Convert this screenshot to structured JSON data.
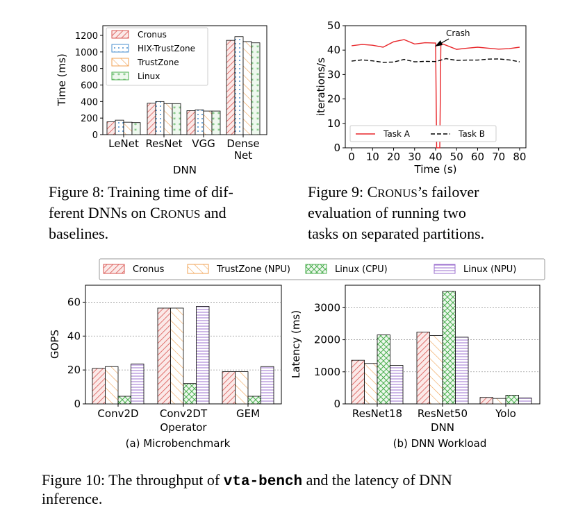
{
  "colors": {
    "cronus": "#d9534f",
    "hix": "#4a8fcf",
    "trustzone": "#f0a050",
    "linux": "#4caf50",
    "linux_npu": "#9b6fcf",
    "task_a": "#e8262a",
    "task_b": "#000000"
  },
  "figure8": {
    "caption_lines": [
      {
        "parts": [
          {
            "t": "Figure 8: Training time of dif-",
            "sc": false
          }
        ]
      },
      {
        "parts": [
          {
            "t": "ferent DNNs on ",
            "sc": false
          },
          {
            "t": "C",
            "sc": false
          },
          {
            "t": "RONUS",
            "sc": true
          },
          {
            "t": " and",
            "sc": false
          }
        ]
      },
      {
        "parts": [
          {
            "t": "baselines.",
            "sc": false
          }
        ]
      }
    ],
    "chart_data": {
      "type": "bar",
      "categories": [
        "LeNet",
        "ResNet",
        "VGG",
        "Dense\nNet"
      ],
      "series": [
        {
          "name": "Cronus",
          "values": [
            155,
            380,
            290,
            1140
          ]
        },
        {
          "name": "HIX-TrustZone",
          "values": [
            175,
            400,
            300,
            1185
          ]
        },
        {
          "name": "TrustZone",
          "values": [
            150,
            375,
            285,
            1125
          ]
        },
        {
          "name": "Linux",
          "values": [
            145,
            375,
            285,
            1110
          ]
        }
      ],
      "xlabel": "DNN",
      "ylabel": "Time (ms)",
      "ylim": [
        0,
        1200
      ],
      "yticks": [
        "0",
        "200",
        "400",
        "600",
        "800",
        "1000",
        "1200"
      ],
      "legend": "top-left",
      "grid": false
    }
  },
  "figure9": {
    "caption_lines": [
      {
        "parts": [
          {
            "t": "Figure 9: ",
            "sc": false
          },
          {
            "t": "C",
            "sc": false
          },
          {
            "t": "RONUS",
            "sc": true
          },
          {
            "t": "’s failover",
            "sc": false
          }
        ]
      },
      {
        "parts": [
          {
            "t": "evaluation   of   running   two",
            "sc": false
          }
        ]
      },
      {
        "parts": [
          {
            "t": "tasks on separated partitions.",
            "sc": false
          }
        ]
      }
    ],
    "chart_data": {
      "type": "line",
      "series": [
        {
          "name": "Task A",
          "x": [
            0,
            5,
            10,
            15,
            20,
            25,
            30,
            35,
            40,
            40.5,
            41,
            42,
            42.5,
            43,
            45,
            50,
            55,
            60,
            65,
            70,
            75,
            80
          ],
          "y": [
            41.8,
            42.3,
            42,
            41.2,
            43.4,
            44.3,
            42.5,
            43,
            42.9,
            0,
            0,
            0,
            42.5,
            42.6,
            42,
            40.3,
            40.8,
            41.2,
            40.8,
            40.4,
            40.6,
            41.2
          ]
        },
        {
          "name": "Task B",
          "x": [
            0,
            5,
            10,
            15,
            20,
            25,
            30,
            35,
            40,
            45,
            50,
            55,
            60,
            65,
            70,
            75,
            80
          ],
          "y": [
            35.5,
            36,
            35.6,
            35,
            35.1,
            36.2,
            35.2,
            35.4,
            35.3,
            36.5,
            35.8,
            35.9,
            35.9,
            36.3,
            36.4,
            36,
            35.2
          ]
        }
      ],
      "xlabel": "Time (s)",
      "ylabel": "iterations/s",
      "xlim": [
        -3,
        83
      ],
      "ylim": [
        0,
        50
      ],
      "xticks": [
        "0",
        "10",
        "20",
        "30",
        "40",
        "50",
        "60",
        "70",
        "80"
      ],
      "yticks": [
        "0",
        "10",
        "20",
        "30",
        "40",
        "50"
      ],
      "annotation": "Crash",
      "legend": "bottom",
      "grid": false
    }
  },
  "figure10": {
    "legend": [
      "Cronus",
      "TrustZone (NPU)",
      "Linux (CPU)",
      "Linux (NPU)"
    ],
    "caption_lines": [
      {
        "parts": [
          {
            "t": "Figure 10: The throughput of ",
            "mono": false
          },
          {
            "t": "vta-bench",
            "mono": true
          },
          {
            "t": " and the latency of DNN",
            "mono": false
          }
        ]
      },
      {
        "parts": [
          {
            "t": "inference.",
            "mono": false
          }
        ]
      }
    ],
    "charts": [
      {
        "type": "bar",
        "subtitle": "(a) Microbenchmark",
        "categories": [
          "Conv2D",
          "Conv2DT",
          "GEM"
        ],
        "series": [
          {
            "name": "Cronus",
            "values": [
              21,
              56.5,
              19
            ]
          },
          {
            "name": "TrustZone (NPU)",
            "values": [
              22,
              56.5,
              19
            ]
          },
          {
            "name": "Linux (CPU)",
            "values": [
              4.5,
              12,
              4.5
            ]
          },
          {
            "name": "Linux (NPU)",
            "values": [
              23.5,
              57.5,
              22
            ]
          }
        ],
        "xlabel": "Operator",
        "ylabel": "GOPS",
        "ylim": [
          0,
          70
        ],
        "yticks": [
          "0",
          "20",
          "40",
          "60"
        ],
        "grid": true
      },
      {
        "type": "bar",
        "subtitle": "(b) DNN Workload",
        "categories": [
          "ResNet18",
          "ResNet50",
          "Yolo"
        ],
        "series": [
          {
            "name": "Cronus",
            "values": [
              1360,
              2240,
              200
            ]
          },
          {
            "name": "TrustZone (NPU)",
            "values": [
              1260,
              2130,
              170
            ]
          },
          {
            "name": "Linux (CPU)",
            "values": [
              2150,
              3510,
              270
            ]
          },
          {
            "name": "Linux (NPU)",
            "values": [
              1200,
              2080,
              185
            ]
          }
        ],
        "xlabel": "DNN",
        "ylabel": "Latency (ms)",
        "ylim": [
          0,
          3700
        ],
        "yticks": [
          "0",
          "1000",
          "2000",
          "3000"
        ],
        "grid": true
      }
    ]
  }
}
